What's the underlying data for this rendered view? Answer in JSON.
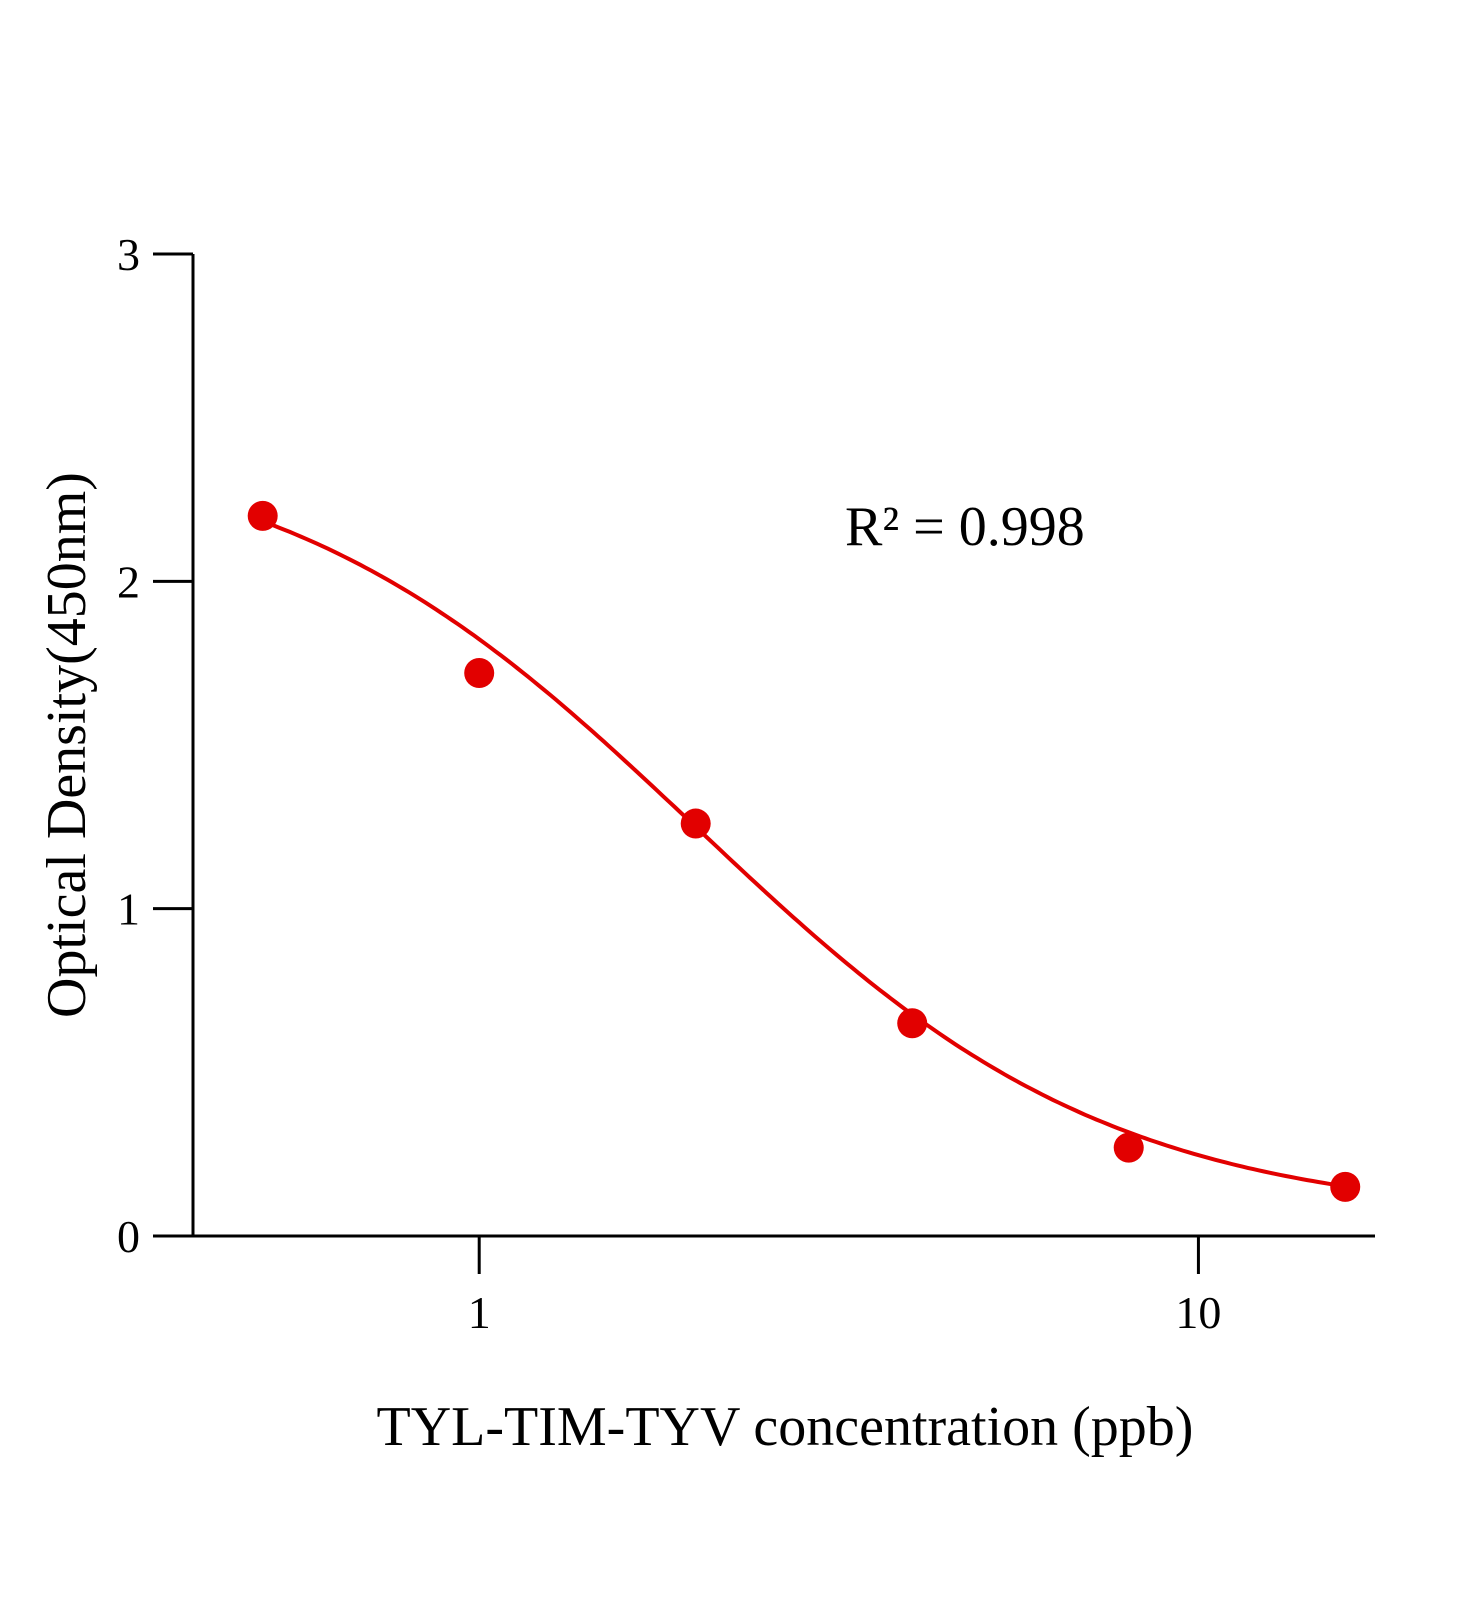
{
  "chart_data": {
    "type": "scatter",
    "title": "",
    "xlabel": "TYL-TIM-TYV concentration (ppb)",
    "ylabel": "Optical Density(450nm)",
    "xscale": "log",
    "xlim": [
      0.4,
      17.6
    ],
    "ylim": [
      0,
      3
    ],
    "xticks": [
      1,
      10
    ],
    "xtick_labels": [
      "1",
      "10"
    ],
    "yticks": [
      0,
      1,
      2,
      3
    ],
    "ytick_labels": [
      "0",
      "1",
      "2",
      "3"
    ],
    "grid": false,
    "legend": "none",
    "annotation": "R² = 0.998",
    "color": "#e20000",
    "series": [
      {
        "x": [
          0.5,
          1,
          2,
          4,
          8,
          16
        ],
        "y": [
          2.2,
          1.72,
          1.26,
          0.65,
          0.27,
          0.15
        ],
        "fit": "four-parameter logistic curve"
      }
    ]
  }
}
